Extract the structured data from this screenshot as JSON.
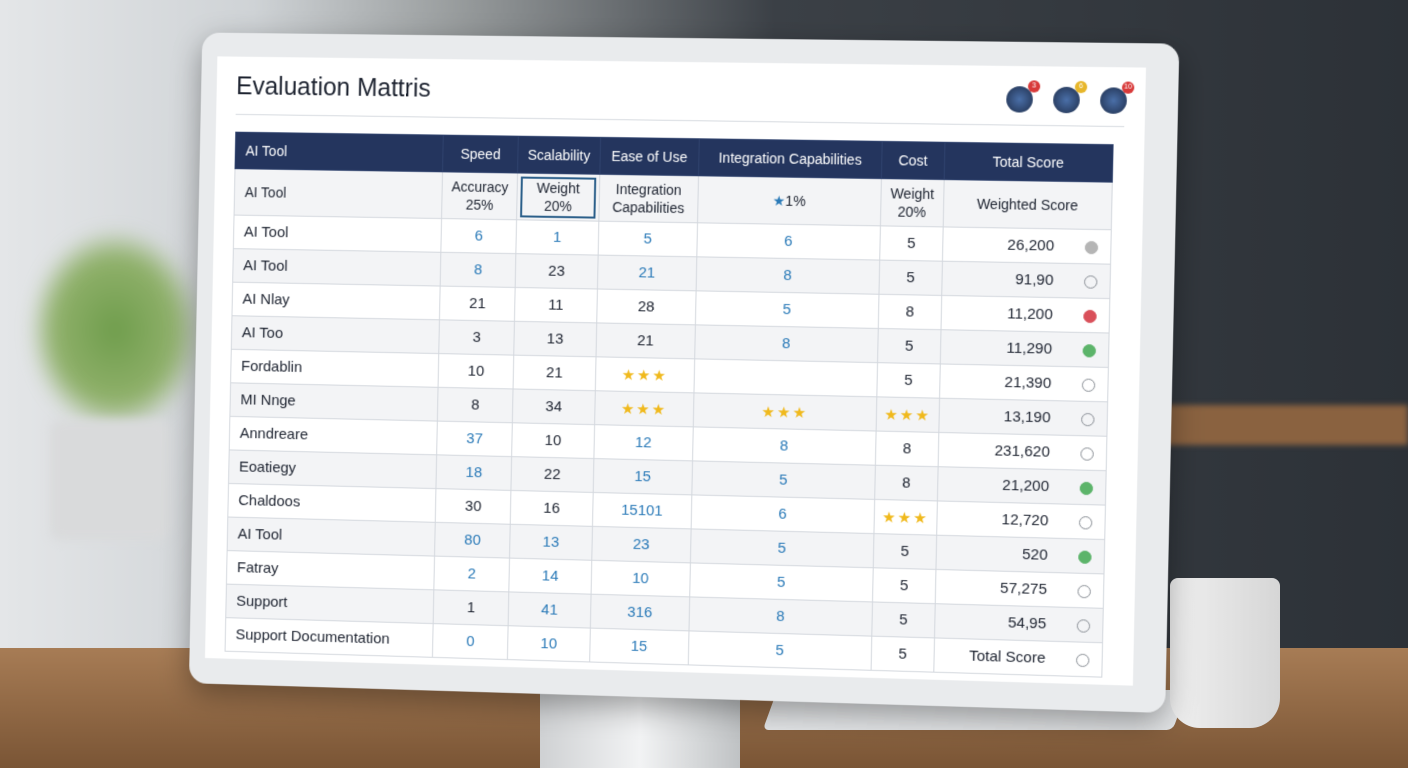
{
  "title": "Evaluation Mattris",
  "badges": [
    "3",
    "6",
    "10"
  ],
  "table": {
    "header": [
      "AI Tool",
      "Speed",
      "Scalability",
      "Ease of Use",
      "Integration Capabilities",
      "Cost",
      "Total Score"
    ],
    "subheader": [
      [
        "AI Tool"
      ],
      [
        "Accuracy",
        "25%"
      ],
      [
        "Weight",
        "20%"
      ],
      [
        "Integration",
        "Capabilities"
      ],
      [
        "1%"
      ],
      [
        "Weight",
        "20%"
      ],
      [
        "Weighted Score"
      ]
    ],
    "rows": [
      {
        "cells": [
          "AI Tool",
          6,
          1,
          5,
          6,
          5,
          "26,200"
        ],
        "accent": [
          1,
          2,
          3,
          4
        ],
        "status": "#b5b5b5"
      },
      {
        "cells": [
          "AI Tool",
          8,
          23,
          21,
          8,
          5,
          "91,90"
        ],
        "accent": [
          1,
          3,
          4
        ],
        "status": "none"
      },
      {
        "cells": [
          "AI Nlay",
          21,
          11,
          28,
          5,
          8,
          "11,200"
        ],
        "accent": [
          4
        ],
        "status": "#d9505a"
      },
      {
        "cells": [
          "AI Too",
          3,
          13,
          21,
          8,
          5,
          "11,290"
        ],
        "accent": [
          4
        ],
        "status": "#5cb46a"
      },
      {
        "cells": [
          "Fordablin",
          10,
          21,
          {
            "stars": 3
          },
          null,
          5,
          "21,390"
        ],
        "accent": [],
        "status": "none"
      },
      {
        "cells": [
          "MI Nnge",
          8,
          34,
          {
            "stars": 3
          },
          {
            "stars": 3
          },
          {
            "stars": 3
          },
          "13,190"
        ],
        "accent": [],
        "status": "none"
      },
      {
        "cells": [
          "Anndreare",
          37,
          10,
          12,
          8,
          8,
          "231,620"
        ],
        "accent": [
          1,
          3,
          4
        ],
        "status": "none"
      },
      {
        "cells": [
          "Eoatiegy",
          18,
          22,
          15,
          5,
          8,
          "21,200"
        ],
        "accent": [
          1,
          3,
          4
        ],
        "status": "#5cb46a"
      },
      {
        "cells": [
          "Chaldoos",
          30,
          16,
          "15101",
          6,
          {
            "stars": 3
          },
          "12,720"
        ],
        "accent": [
          3,
          4
        ],
        "status": "none"
      },
      {
        "cells": [
          "AI Tool",
          80,
          13,
          23,
          5,
          5,
          "520"
        ],
        "accent": [
          1,
          2,
          3,
          4
        ],
        "status": "#5cb46a"
      },
      {
        "cells": [
          "Fatray",
          2,
          14,
          10,
          5,
          5,
          "57,275"
        ],
        "accent": [
          1,
          2,
          3,
          4
        ],
        "status": "none"
      },
      {
        "cells": [
          "Support",
          1,
          41,
          316,
          8,
          5,
          "54,95"
        ],
        "accent": [
          2,
          3,
          4
        ],
        "status": "none"
      },
      {
        "cells": [
          "Support Documentation",
          0,
          10,
          15,
          5,
          5,
          "Total Score"
        ],
        "accent": [
          1,
          2,
          3,
          4
        ],
        "status": "none"
      }
    ]
  }
}
